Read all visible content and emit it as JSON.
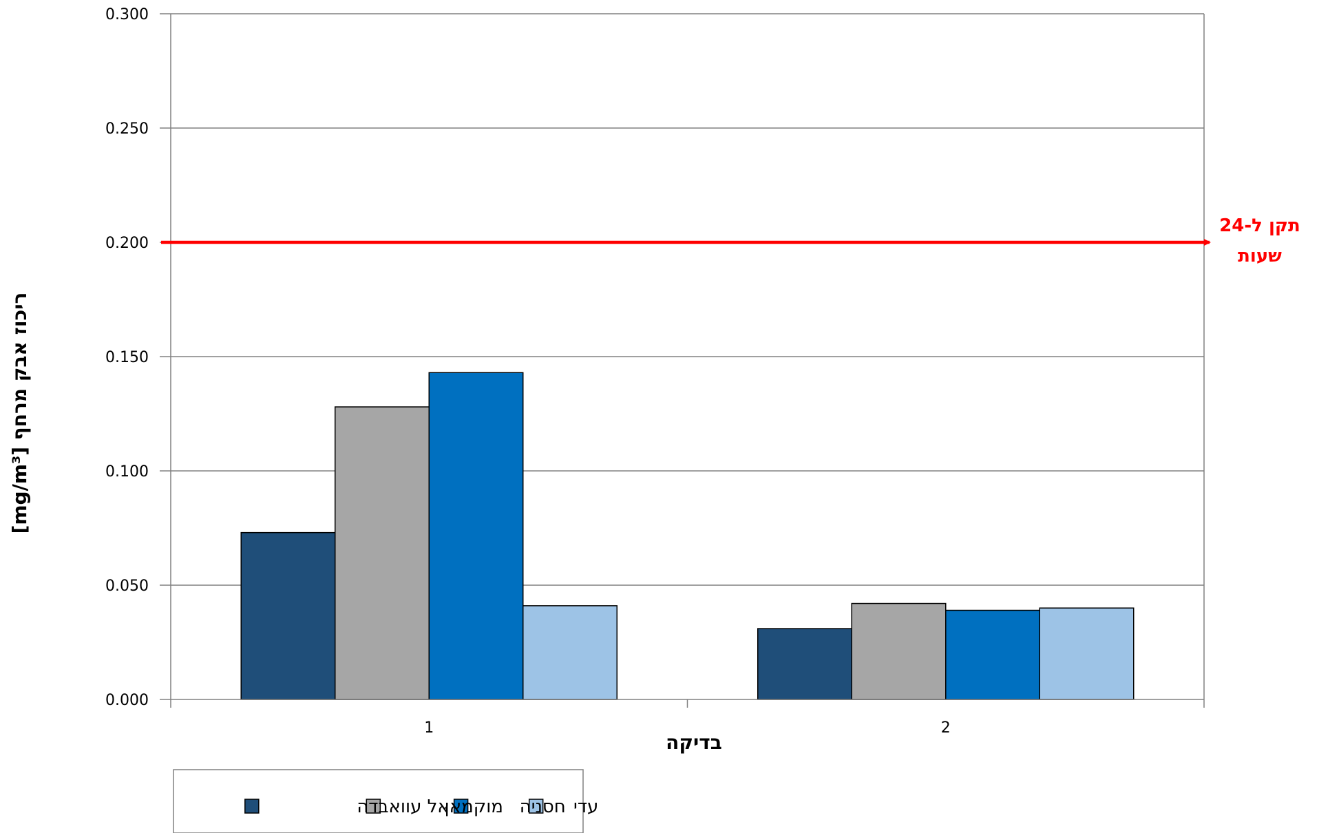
{
  "chart_data": {
    "type": "bar",
    "categories": [
      "1",
      "2"
    ],
    "series": [
      {
        "name": "אל עוואבדה",
        "color": "#1f4e79",
        "values": [
          0.073,
          0.031
        ]
      },
      {
        "name": "מוקמאן",
        "color": "#a6a6a6",
        "values": [
          0.128,
          0.042
        ]
      },
      {
        "name": "חסניה",
        "color": "#0070c0",
        "values": [
          0.143,
          0.039
        ]
      },
      {
        "name": "עדי",
        "color": "#9dc3e6",
        "values": [
          0.041,
          0.04
        ]
      }
    ],
    "xlabel": "בדיקה",
    "ylabel": "ריכוז אבק מרחף [mg/m³]",
    "ylim": [
      0,
      0.3
    ],
    "yticks": [
      "0.000",
      "0.050",
      "0.100",
      "0.150",
      "0.200",
      "0.250",
      "0.300"
    ],
    "grid": true,
    "legend_position": "bottom-left",
    "reference_line": {
      "value": 0.2,
      "color": "#ff0000",
      "label_line1": "תקן ל-24",
      "label_line2": "שעות"
    }
  }
}
